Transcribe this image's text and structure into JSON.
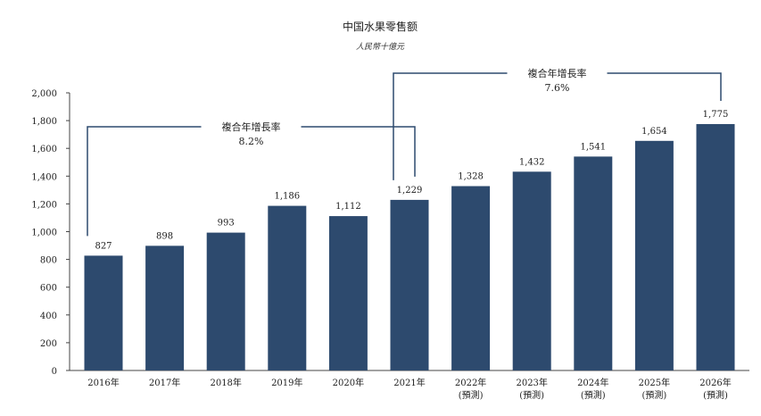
{
  "chart_data": {
    "type": "bar",
    "title": "中国水果零售额",
    "subtitle": "人民幣十億元",
    "categories": [
      "2016年",
      "2017年",
      "2018年",
      "2019年",
      "2020年",
      "2021年",
      "2022年",
      "2023年",
      "2024年",
      "2025年",
      "2026年"
    ],
    "category_notes": [
      "",
      "",
      "",
      "",
      "",
      "",
      "(預測)",
      "(預測)",
      "(預測)",
      "(預測)",
      "(預測)"
    ],
    "values": [
      827,
      898,
      993,
      1186,
      1112,
      1229,
      1328,
      1432,
      1541,
      1654,
      1775
    ],
    "value_labels": [
      "827",
      "898",
      "993",
      "1,186",
      "1,112",
      "1,229",
      "1,328",
      "1,432",
      "1,541",
      "1,654",
      "1,775"
    ],
    "ylim": [
      0,
      2000
    ],
    "yticks": [
      0,
      200,
      400,
      600,
      800,
      1000,
      1200,
      1400,
      1600,
      1800,
      2000
    ],
    "ytick_labels": [
      "0",
      "200",
      "400",
      "600",
      "800",
      "1,000",
      "1,200",
      "1,400",
      "1,600",
      "1,800",
      "2,000"
    ],
    "bar_color": "#2d4a6e",
    "grid": false,
    "annotations": [
      {
        "label": "複合年增長率",
        "value": "8.2%",
        "from_index": 0,
        "to_index": 5
      },
      {
        "label": "複合年增長率",
        "value": "7.6%",
        "from_index": 5,
        "to_index": 10
      }
    ]
  }
}
